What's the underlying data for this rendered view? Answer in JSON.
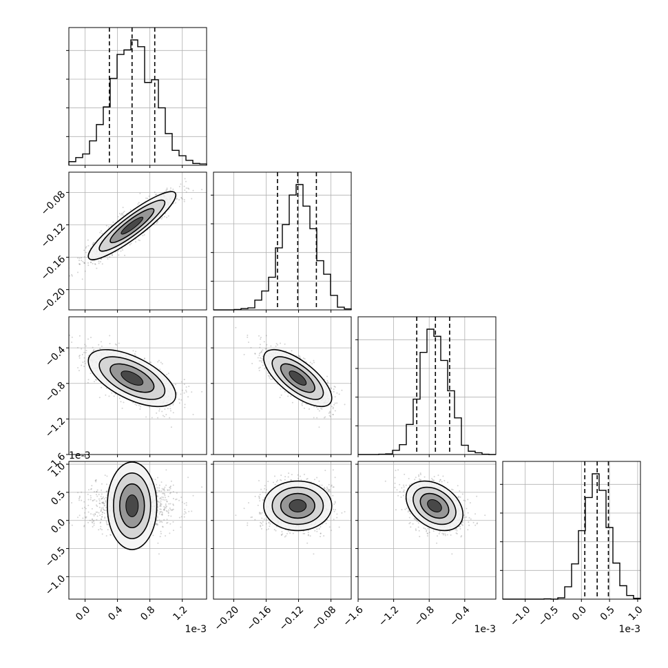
{
  "chart_data": {
    "type": "corner",
    "n_params": 4,
    "offset_text": "1e-3",
    "grid": true,
    "quantiles_marked": [
      0.16,
      0.5,
      0.84
    ],
    "colors": {
      "hist": "#000000",
      "grid": "#b0b0b0",
      "scatter": "#7f7f7f",
      "contour": "#000000"
    },
    "parameters": [
      {
        "range": [
          -0.2,
          1.5
        ],
        "ticks": [
          "0.0",
          "0.4",
          "0.8",
          "1.2"
        ],
        "tick_values": [
          0.0,
          0.4,
          0.8,
          1.2
        ],
        "offset_text": "1e-3",
        "mean": 0.58,
        "sd": 0.27,
        "quantiles": [
          0.3,
          0.58,
          0.86
        ]
      },
      {
        "range": [
          -0.225,
          -0.055
        ],
        "ticks": [
          "-0.20",
          "-0.16",
          "-0.12",
          "-0.08"
        ],
        "tick_values": [
          -0.2,
          -0.16,
          -0.12,
          -0.08
        ],
        "offset_text": "",
        "mean": -0.121,
        "sd": 0.021,
        "quantiles": [
          -0.146,
          -0.121,
          -0.098
        ]
      },
      {
        "range": [
          -1.6,
          -0.05
        ],
        "ticks": [
          "-1.6",
          "-1.2",
          "-0.8",
          "-0.4"
        ],
        "tick_values": [
          -1.6,
          -1.2,
          -0.8,
          -0.4
        ],
        "offset_text": "1e-3",
        "mean": -0.74,
        "sd": 0.16,
        "quantiles": [
          -0.94,
          -0.73,
          -0.57
        ]
      },
      {
        "range": [
          -1.4,
          1.05
        ],
        "ticks": [
          "-1.0",
          "-0.5",
          "0.0",
          "0.5",
          "1.0"
        ],
        "tick_values": [
          -1.0,
          -0.5,
          0.0,
          0.5,
          1.0
        ],
        "offset_text": "1e-3",
        "mean": 0.26,
        "sd": 0.22,
        "quantiles": [
          0.06,
          0.28,
          0.48
        ]
      }
    ],
    "correlations": [
      [
        0,
        1,
        0.9
      ],
      [
        0,
        2,
        -0.6
      ],
      [
        1,
        2,
        -0.7
      ],
      [
        0,
        3,
        0.0
      ],
      [
        1,
        3,
        0.0
      ],
      [
        2,
        3,
        -0.35
      ]
    ]
  }
}
